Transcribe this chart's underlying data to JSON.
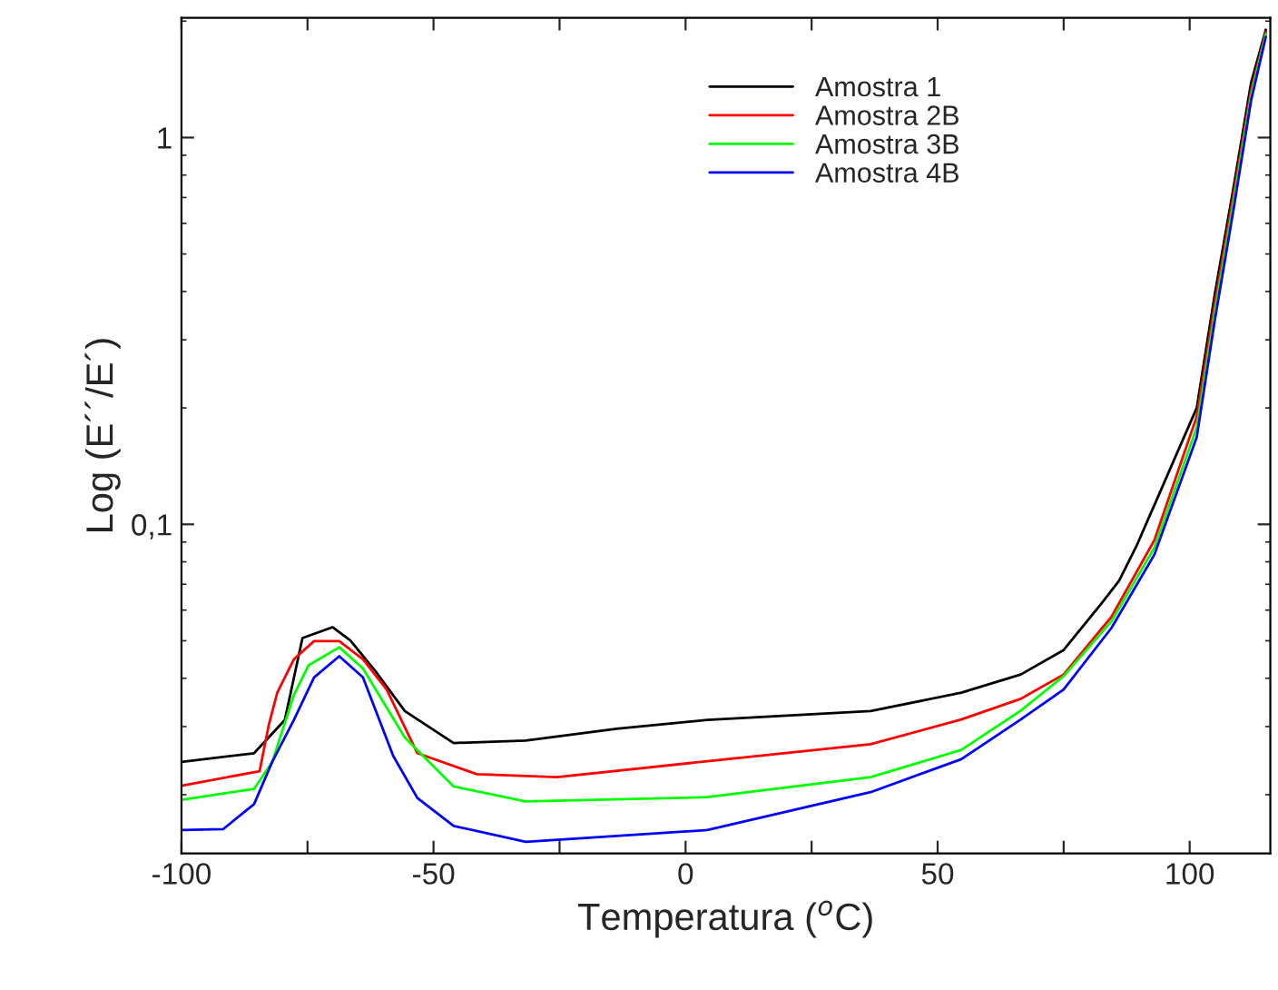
{
  "chart_data": {
    "type": "line",
    "xlabel": "Temperatura ($^{o}$C)",
    "ylabel": "Log (E´´/E´)",
    "log": "y",
    "xlim": [
      -100,
      116
    ],
    "ylim": [
      0.0141,
      2.04
    ],
    "xticks": [
      -100,
      {
        "value": -75,
        "label": null
      },
      -50,
      {
        "value": -25,
        "label": null
      },
      0,
      {
        "value": 25,
        "label": null
      },
      50,
      {
        "value": 75,
        "label": null
      },
      100
    ],
    "yticks": [
      {
        "value": 0.1,
        "label": "0,1"
      },
      {
        "value": 1,
        "label": "1"
      }
    ],
    "grid": false,
    "legend": "top",
    "marker": "none",
    "line_style": "solid",
    "series": [
      {
        "name": "Amostra 1",
        "color": "#000000",
        "x": [
          -100,
          -85.6,
          -79.5,
          -76,
          -70,
          -66.5,
          -61.5,
          -55.7,
          -46,
          -31.7,
          -13.7,
          4.3,
          36.7,
          54.7,
          66.5,
          75,
          82.4,
          86,
          89.6,
          101.4,
          105,
          108.6,
          112.2,
          115.1
        ],
        "values": [
          0.0243,
          0.0256,
          0.0312,
          0.0508,
          0.0542,
          0.0501,
          0.0417,
          0.0329,
          0.0272,
          0.0276,
          0.0296,
          0.0312,
          0.0329,
          0.0367,
          0.0409,
          0.0473,
          0.0622,
          0.0715,
          0.0888,
          0.2,
          0.395,
          0.73,
          1.39,
          1.9
        ]
      },
      {
        "name": "Amostra 2B",
        "color": "#ff0000",
        "x": [
          -100,
          -84.5,
          -82.7,
          -81,
          -77.7,
          -73.7,
          -68.7,
          -64,
          -59.3,
          -53.2,
          -41.4,
          -25.5,
          4.3,
          36.7,
          54.7,
          66.5,
          75,
          84.5,
          93,
          101.4,
          105,
          108.6,
          112.2,
          115.1
        ],
        "values": [
          0.0211,
          0.023,
          0.0302,
          0.0367,
          0.0448,
          0.0499,
          0.0499,
          0.0448,
          0.0374,
          0.0256,
          0.0226,
          0.0222,
          0.0244,
          0.027,
          0.0313,
          0.0354,
          0.0409,
          0.0577,
          0.091,
          0.19,
          0.375,
          0.7,
          1.33,
          1.87
        ]
      },
      {
        "name": "Amostra 3B",
        "color": "#00ff00",
        "x": [
          -100,
          -85.6,
          -82,
          -77.7,
          -74.8,
          -68.7,
          -64,
          -55.7,
          -46,
          -31.7,
          4.3,
          36.7,
          54.7,
          66.5,
          75,
          84.5,
          93,
          101.4,
          105,
          108.6,
          112.2,
          115.1
        ],
        "values": [
          0.0194,
          0.0207,
          0.0243,
          0.0362,
          0.0432,
          0.0481,
          0.0424,
          0.0281,
          0.021,
          0.0192,
          0.0197,
          0.0222,
          0.0261,
          0.033,
          0.0405,
          0.0562,
          0.087,
          0.178,
          0.355,
          0.67,
          1.29,
          1.85
        ]
      },
      {
        "name": "Amostra 4B",
        "color": "#0000ff",
        "x": [
          -100,
          -91.7,
          -85.6,
          -82,
          -77.7,
          -73.7,
          -68.7,
          -64,
          -58,
          -53.2,
          -46,
          -31.7,
          4.3,
          36.7,
          54.7,
          66.5,
          75,
          84.5,
          93,
          101.4,
          105,
          108.6,
          112.2,
          115.1
        ],
        "values": [
          0.0162,
          0.0163,
          0.0189,
          0.0243,
          0.0312,
          0.0402,
          0.0456,
          0.0402,
          0.0252,
          0.0196,
          0.0166,
          0.0151,
          0.0162,
          0.0203,
          0.0247,
          0.0313,
          0.0374,
          0.054,
          0.0835,
          0.168,
          0.338,
          0.64,
          1.25,
          1.82
        ]
      }
    ]
  }
}
